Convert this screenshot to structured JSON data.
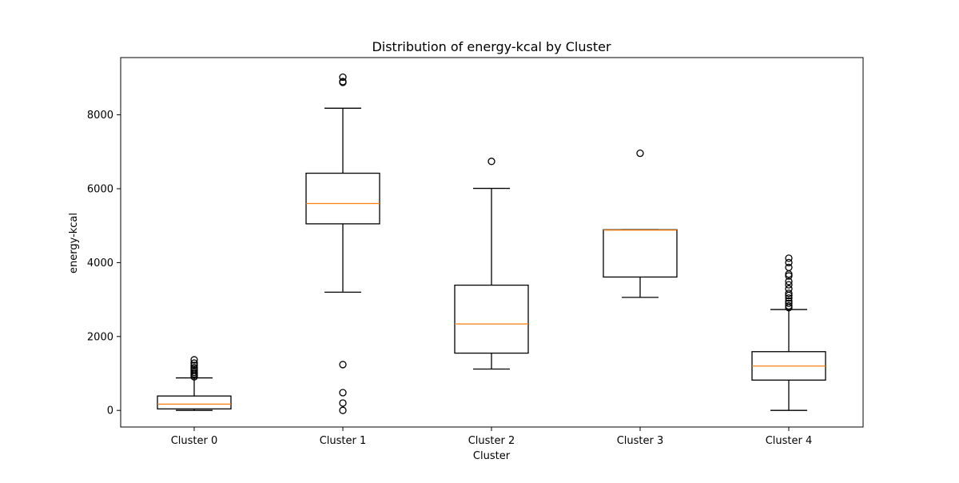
{
  "chart_data": {
    "type": "box",
    "title": "Distribution of energy-kcal by Cluster",
    "xlabel": "Cluster",
    "ylabel": "energy-kcal",
    "ylim": [
      -450,
      9550
    ],
    "yticks": [
      0,
      2000,
      4000,
      6000,
      8000
    ],
    "grid": false,
    "categories": [
      "Cluster 0",
      "Cluster 1",
      "Cluster 2",
      "Cluster 3",
      "Cluster 4"
    ],
    "boxes": [
      {
        "min": 0,
        "q1": 40,
        "median": 170,
        "q3": 390,
        "max": 880,
        "outliers": [
          910,
          950,
          990,
          1030,
          1080,
          1120,
          1160,
          1220,
          1280,
          1370
        ]
      },
      {
        "min": 3200,
        "q1": 5050,
        "median": 5600,
        "q3": 6420,
        "max": 8180,
        "outliers": [
          0,
          200,
          480,
          1240,
          8880,
          8900,
          9020
        ]
      },
      {
        "min": 1120,
        "q1": 1550,
        "median": 2340,
        "q3": 3390,
        "max": 6010,
        "outliers": [
          6740
        ]
      },
      {
        "min": 3060,
        "q1": 3610,
        "median": 4880,
        "q3": 4890,
        "max": 4890,
        "outliers": [
          6960
        ]
      },
      {
        "min": 0,
        "q1": 820,
        "median": 1200,
        "q3": 1590,
        "max": 2730,
        "outliers": [
          2780,
          2830,
          2900,
          2960,
          3040,
          3110,
          3170,
          3290,
          3400,
          3490,
          3640,
          3690,
          3870,
          4000,
          4120
        ]
      }
    ],
    "colors": {
      "box": "#000000",
      "median": "#ff7f0e",
      "outlier": "#000000"
    }
  }
}
